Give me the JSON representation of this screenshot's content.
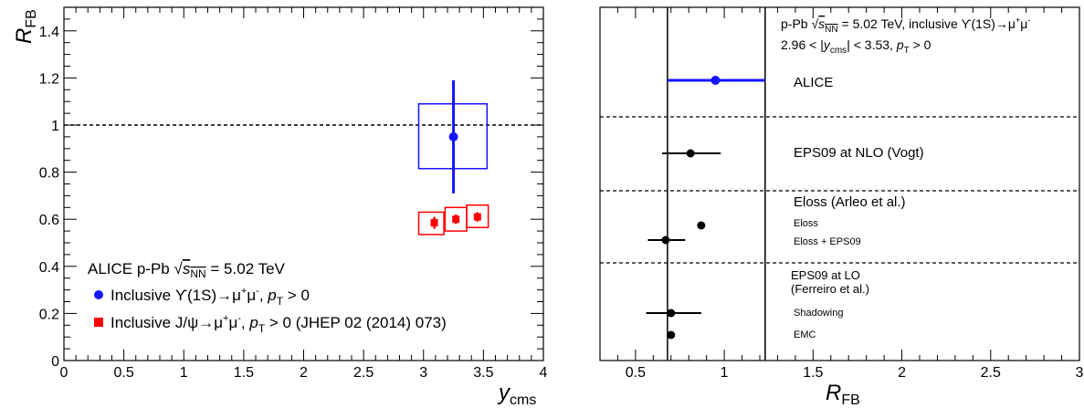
{
  "chart_data": [
    {
      "type": "scatter",
      "xlabel": "y",
      "xlabel_sub": "cms",
      "ylabel": "R",
      "ylabel_sub": "FB",
      "xlim": [
        0,
        4
      ],
      "ylim": [
        0,
        1.5
      ],
      "x_ticks": [
        "0",
        "0.5",
        "1",
        "1.5",
        "2",
        "2.5",
        "3",
        "3.5",
        "4"
      ],
      "y_ticks": [
        "0",
        "0.2",
        "0.4",
        "0.6",
        "0.8",
        "1",
        "1.2",
        "1.4"
      ],
      "reference_line": 1,
      "legend": {
        "header": "ALICE p-Pb √s_NN = 5.02 TeV",
        "entries": [
          "Inclusive ϒ(1S)→μ⁺μ⁻, p_T > 0",
          "Inclusive J/ψ→μ⁺μ⁻, p_T > 0 (JHEP 02 (2014) 073)"
        ]
      },
      "series": [
        {
          "color": "#1515ff",
          "marker": "circle",
          "points": [
            {
              "x": 3.25,
              "y": 0.95,
              "stat_lo": 0.24,
              "stat_hi": 0.24,
              "sys_x_lo": 2.96,
              "sys_x_hi": 3.53,
              "sys_y_lo": 0.815,
              "sys_y_hi": 1.09
            }
          ]
        },
        {
          "color": "#ff0000",
          "marker": "square",
          "points": [
            {
              "x": 3.09,
              "y": 0.585,
              "stat_lo": 0.025,
              "stat_hi": 0.025,
              "sys_x_lo": 2.96,
              "sys_x_hi": 3.17,
              "sys_y_lo": 0.535,
              "sys_y_hi": 0.63
            },
            {
              "x": 3.27,
              "y": 0.6,
              "stat_lo": 0.02,
              "stat_hi": 0.02,
              "sys_x_lo": 3.18,
              "sys_x_hi": 3.36,
              "sys_y_lo": 0.55,
              "sys_y_hi": 0.65
            },
            {
              "x": 3.45,
              "y": 0.61,
              "stat_lo": 0.02,
              "stat_hi": 0.02,
              "sys_x_lo": 3.36,
              "sys_x_hi": 3.54,
              "sys_y_lo": 0.565,
              "sys_y_hi": 0.66
            }
          ]
        }
      ]
    },
    {
      "type": "scatter",
      "xlabel": "R",
      "xlabel_sub": "FB",
      "xlim": [
        0.3,
        3
      ],
      "x_ticks": [
        "0.5",
        "1",
        "1.5",
        "2",
        "2.5",
        "3"
      ],
      "band": {
        "x_lo": 0.68,
        "x_hi": 1.23
      },
      "header": {
        "line1": "p-Pb √s_NN = 5.02 TeV, inclusive ϒ(1S)→μ⁺μ⁻",
        "line2": "2.96 < |y_cms| < 3.53, p_T > 0"
      },
      "sections": [
        {
          "title": "ALICE",
          "color": "#1515ff"
        },
        {
          "title": "EPS09 at NLO (Vogt)",
          "color": "#000000"
        },
        {
          "title": "Eloss (Arleo et al.)",
          "color": "#000000"
        },
        {
          "title": "EPS09 at LO\n(Ferreiro et al.)",
          "color": "#000000"
        }
      ],
      "points": [
        {
          "label": "",
          "x": 0.95,
          "x_lo": 0.68,
          "x_hi": 1.23,
          "color": "#1515ff"
        },
        {
          "label": "",
          "x": 0.81,
          "x_lo": 0.65,
          "x_hi": 0.98,
          "color": "#000000"
        },
        {
          "label": "Eloss",
          "x": 0.87,
          "x_lo": null,
          "x_hi": null,
          "color": "#000000"
        },
        {
          "label": "Eloss + EPS09",
          "x": 0.67,
          "x_lo": 0.57,
          "x_hi": 0.78,
          "color": "#000000"
        },
        {
          "label": "Shadowing",
          "x": 0.7,
          "x_lo": 0.56,
          "x_hi": 0.87,
          "color": "#000000"
        },
        {
          "label": "EMC",
          "x": 0.7,
          "x_lo": null,
          "x_hi": null,
          "color": "#000000"
        }
      ]
    }
  ]
}
